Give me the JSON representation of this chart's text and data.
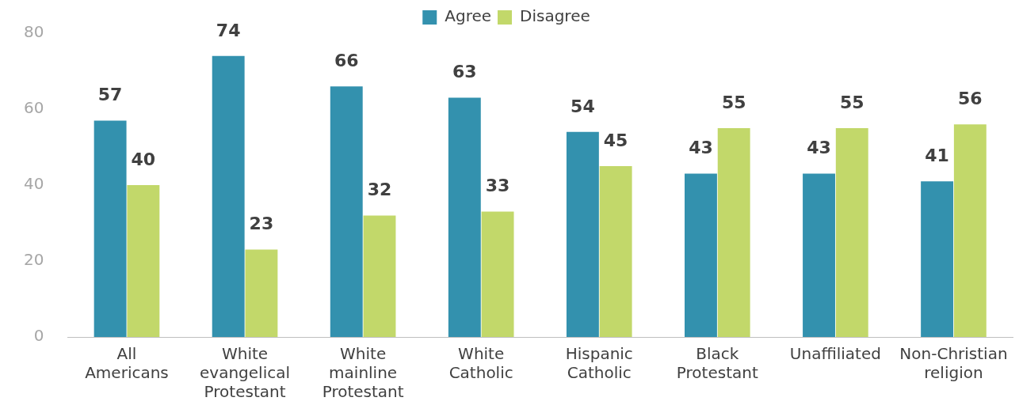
{
  "chart_data": {
    "type": "bar",
    "categories": [
      "All Americans",
      "White evangelical Protestant",
      "White mainline Protestant",
      "White Catholic",
      "Hispanic Catholic",
      "Black Protestant",
      "Unaffiliated",
      "Non-Christian religion"
    ],
    "series": [
      {
        "name": "Agree",
        "color": "#3391ae",
        "values": [
          57,
          74,
          66,
          63,
          54,
          43,
          43,
          41
        ]
      },
      {
        "name": "Disagree",
        "color": "#c2d86a",
        "values": [
          40,
          23,
          32,
          33,
          45,
          55,
          55,
          56
        ]
      }
    ],
    "ylim": [
      0,
      80
    ],
    "yticks": [
      0,
      20,
      40,
      60,
      80
    ],
    "grid": false,
    "legend": "top",
    "data_labels": true
  }
}
